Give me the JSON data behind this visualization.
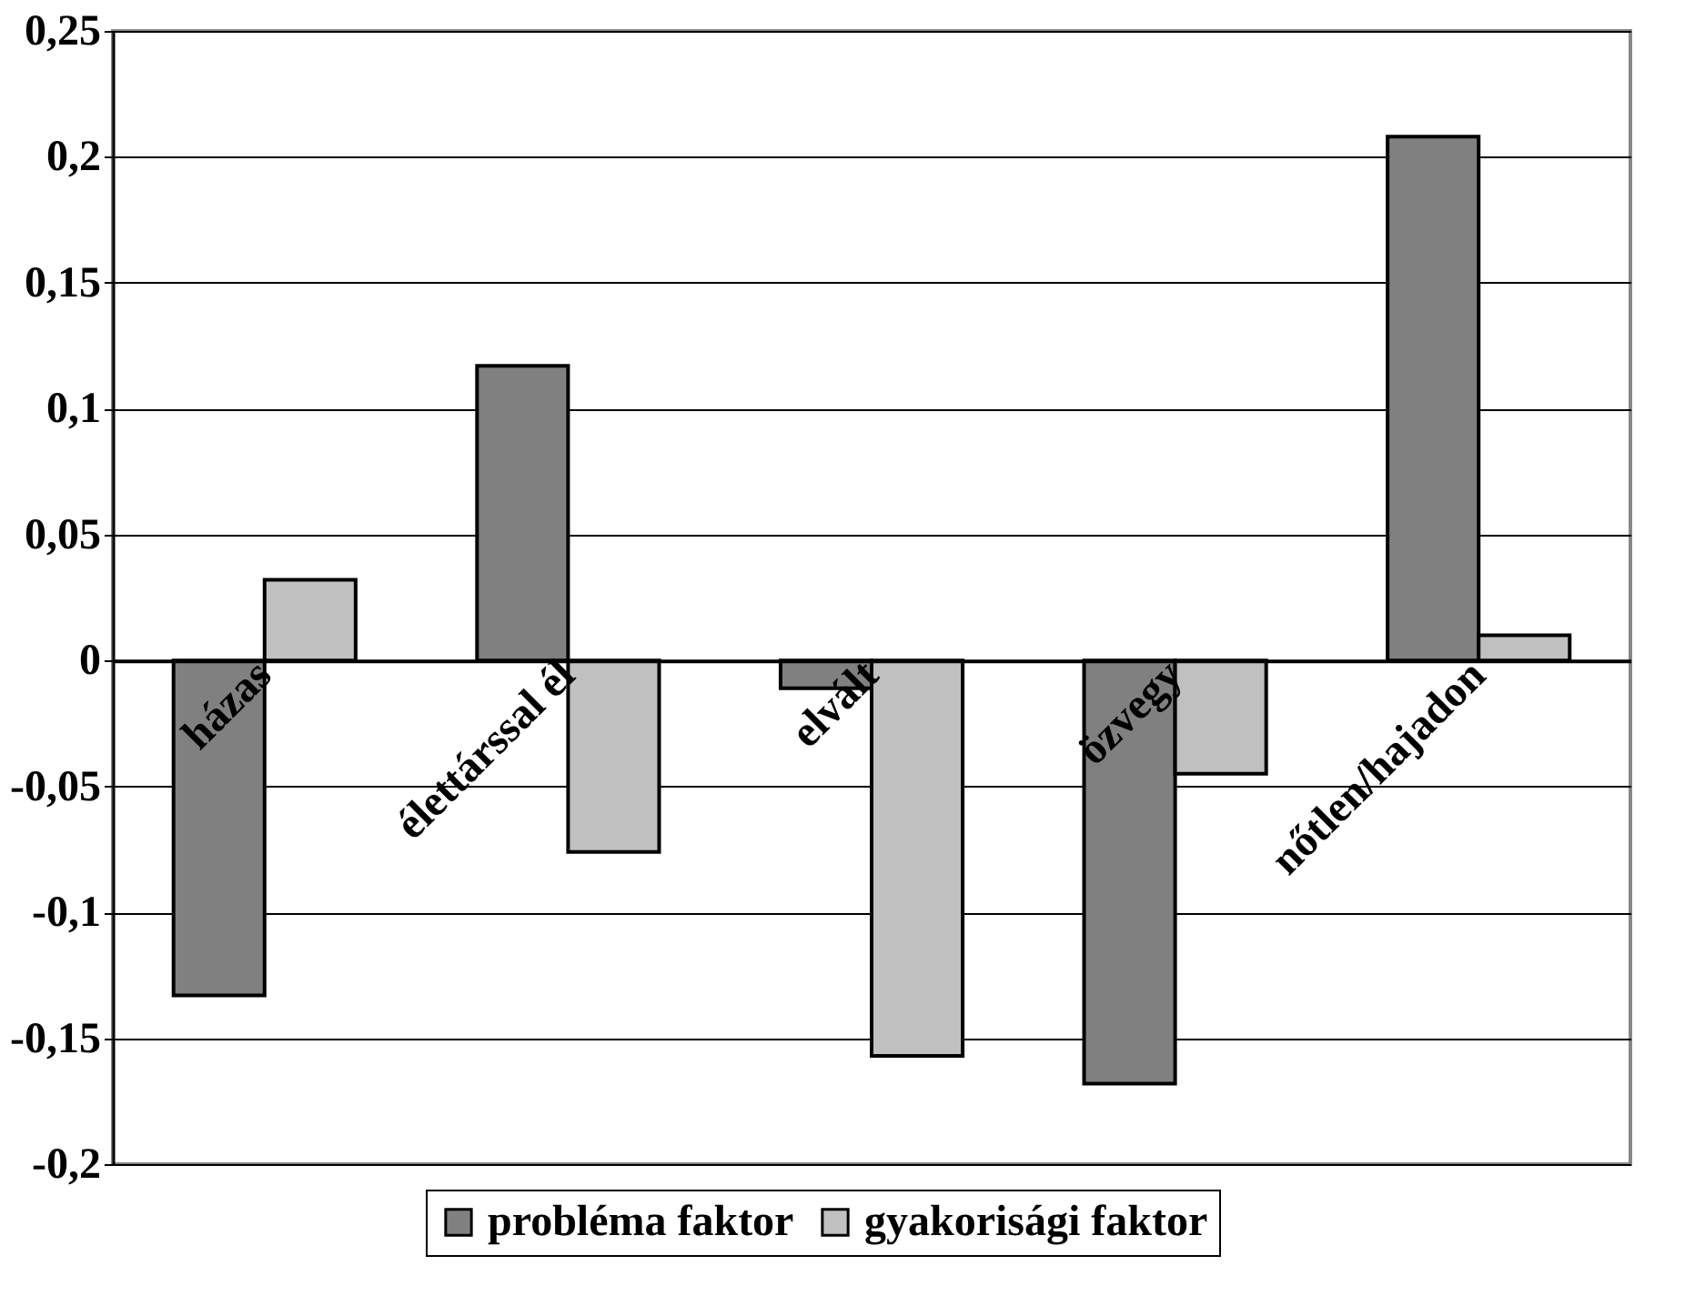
{
  "chart_data": {
    "type": "bar",
    "categories": [
      "házas",
      "élettárssal él",
      "elvált",
      "özvegy",
      "nőtlen/hajadon"
    ],
    "series": [
      {
        "name": "probléma faktor",
        "color": "#808080",
        "values": [
          -0.133,
          0.117,
          -0.011,
          -0.168,
          0.208
        ]
      },
      {
        "name": "gyakorisági faktor",
        "color": "#c0c0c0",
        "values": [
          0.032,
          -0.076,
          -0.157,
          -0.045,
          0.01
        ]
      }
    ],
    "ylim": [
      -0.2,
      0.25
    ],
    "yticks": [
      {
        "value": -0.2,
        "label": "-0,2"
      },
      {
        "value": -0.15,
        "label": "-0,15"
      },
      {
        "value": -0.1,
        "label": "-0,1"
      },
      {
        "value": -0.05,
        "label": "-0,05"
      },
      {
        "value": 0,
        "label": "0"
      },
      {
        "value": 0.05,
        "label": "0,05"
      },
      {
        "value": 0.1,
        "label": "0,1"
      },
      {
        "value": 0.15,
        "label": "0,15"
      },
      {
        "value": 0.2,
        "label": "0,2"
      },
      {
        "value": 0.25,
        "label": "0,25"
      }
    ],
    "grid": "y",
    "legend": "bottom"
  }
}
